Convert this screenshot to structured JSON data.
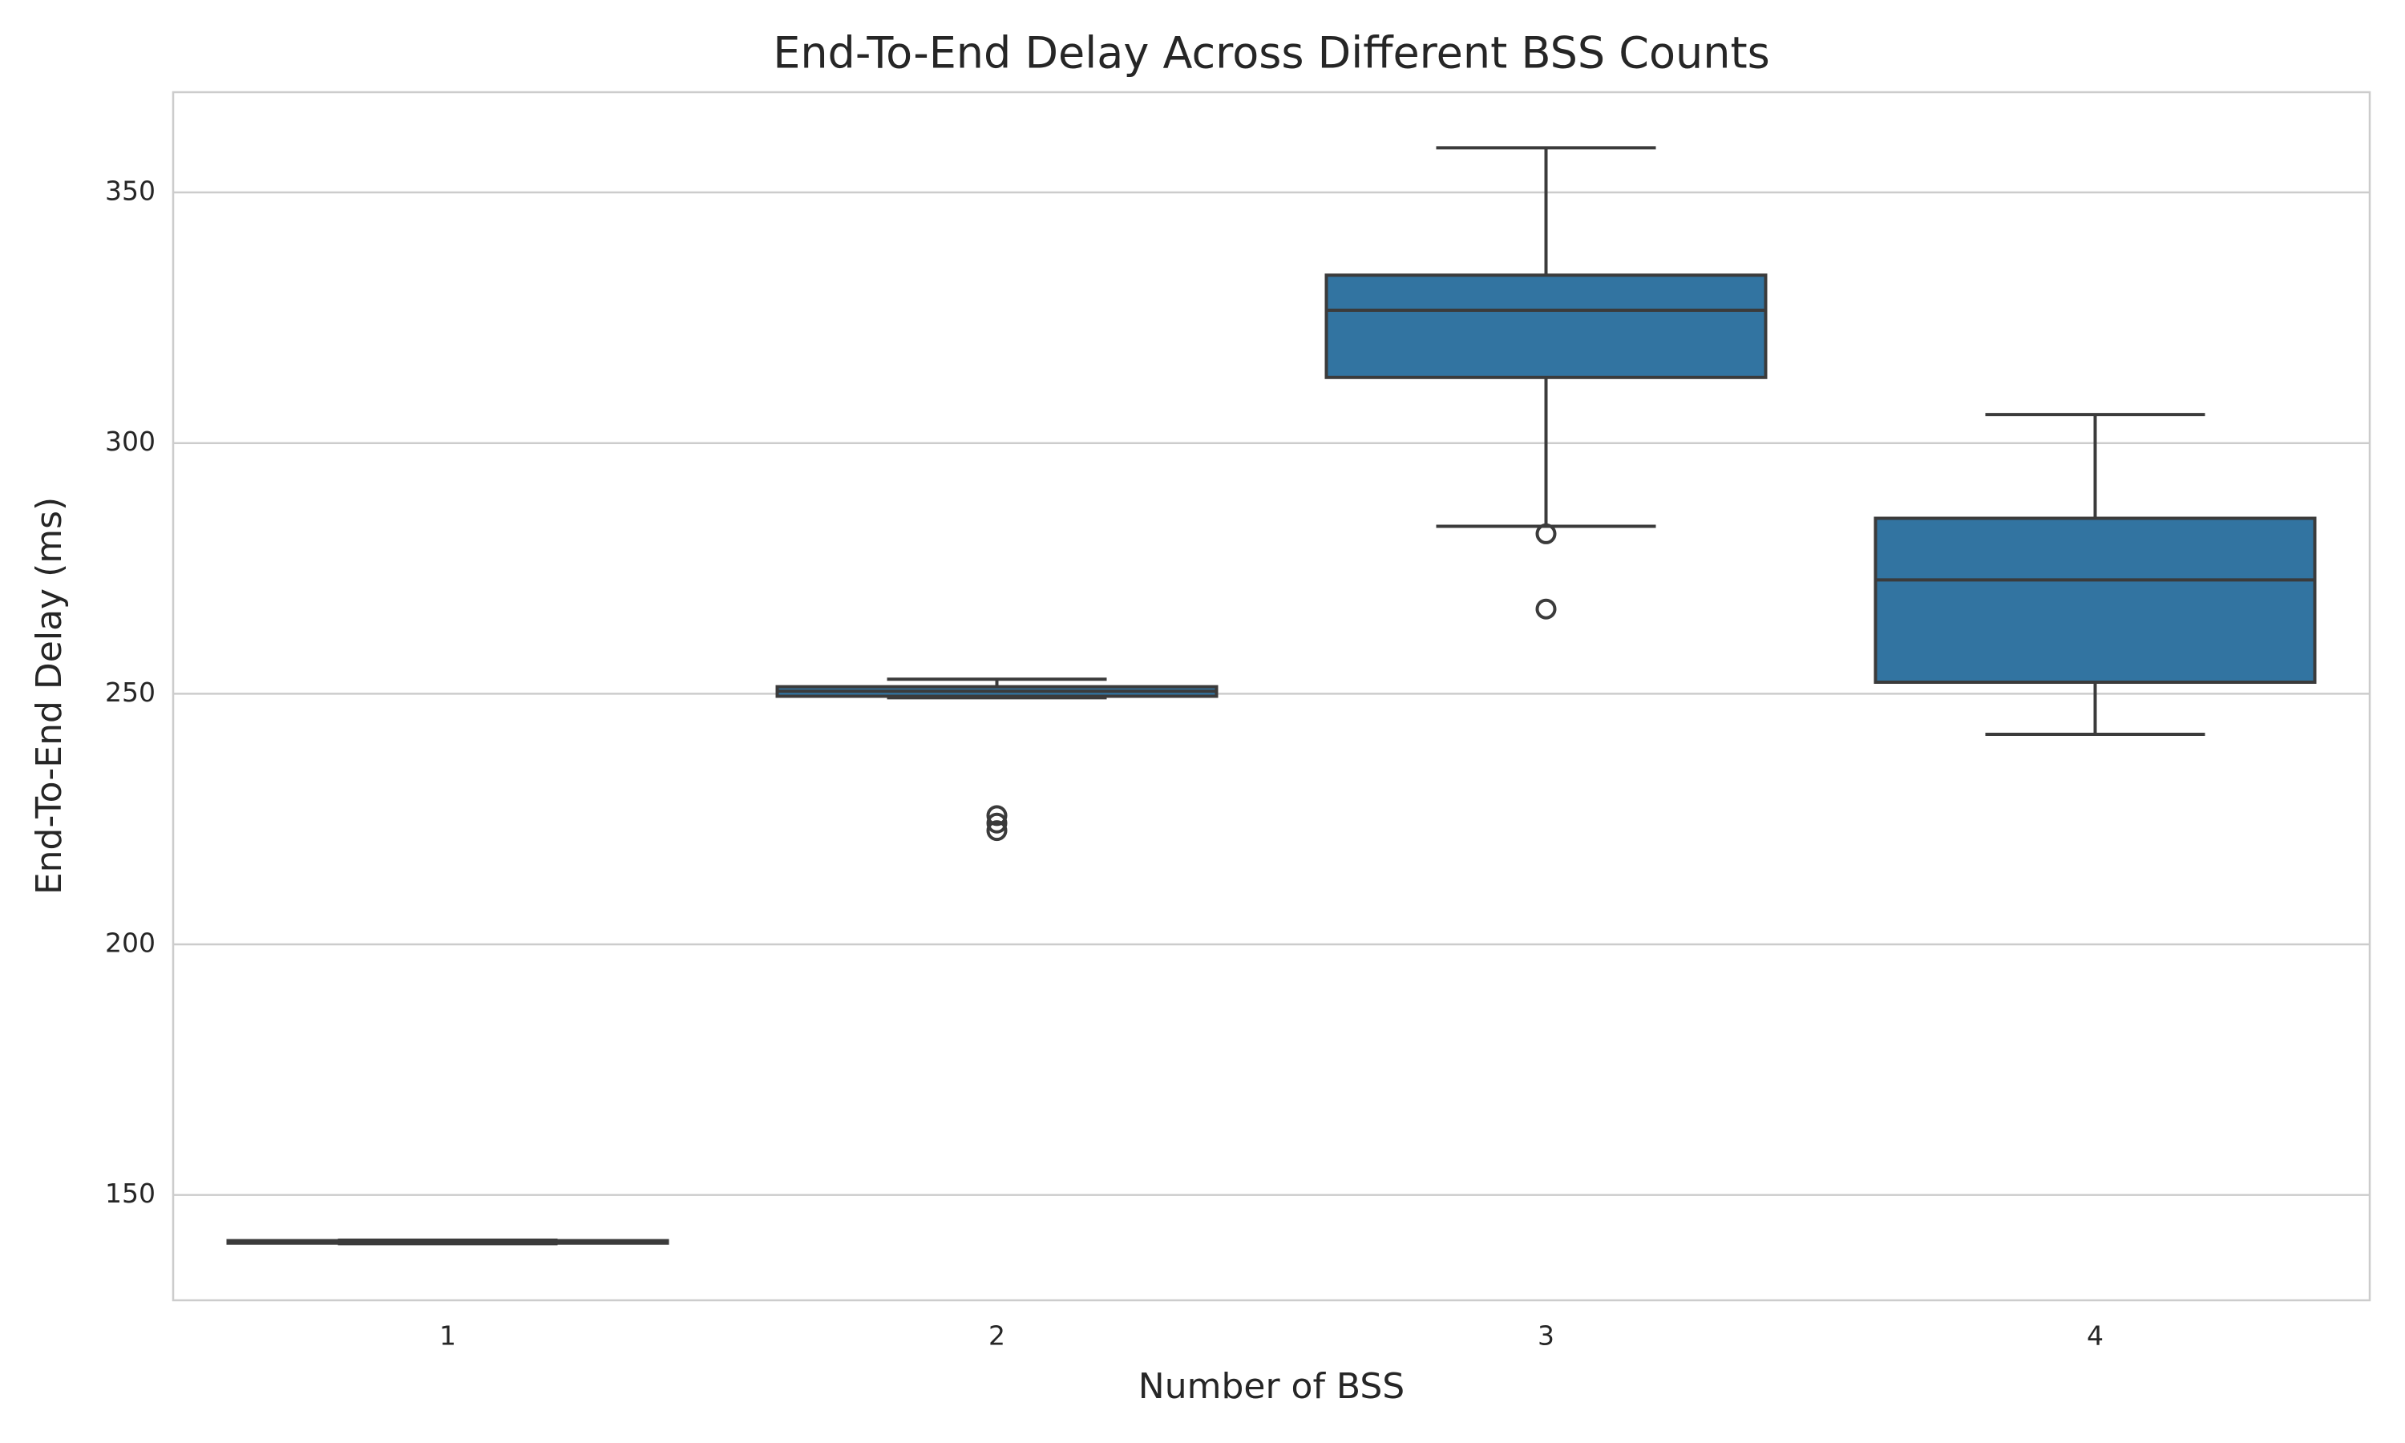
{
  "chart_data": {
    "type": "box",
    "title": "End-To-End Delay Across Different BSS Counts",
    "xlabel": "Number of BSS",
    "ylabel": "End-To-End Delay (ms)",
    "categories": [
      "1",
      "2",
      "3",
      "4"
    ],
    "boxes": [
      {
        "whisker_low": 140.3,
        "q1": 140.4,
        "median": 140.6,
        "q3": 140.9,
        "whisker_high": 141.0,
        "outliers": []
      },
      {
        "whisker_low": 249.2,
        "q1": 249.5,
        "median": 250.5,
        "q3": 251.4,
        "whisker_high": 252.9,
        "outliers": [
          225.7,
          224.2,
          222.7
        ]
      },
      {
        "whisker_low": 283.4,
        "q1": 313.1,
        "median": 326.5,
        "q3": 333.5,
        "whisker_high": 358.9,
        "outliers": [
          281.9,
          266.9
        ]
      },
      {
        "whisker_low": 241.9,
        "q1": 252.3,
        "median": 272.7,
        "q3": 285.0,
        "whisker_high": 305.7,
        "outliers": []
      }
    ],
    "color": "#3274a1",
    "ylim": [
      129,
      370
    ],
    "yticks": [
      150,
      200,
      250,
      300,
      350
    ],
    "grid": true
  }
}
